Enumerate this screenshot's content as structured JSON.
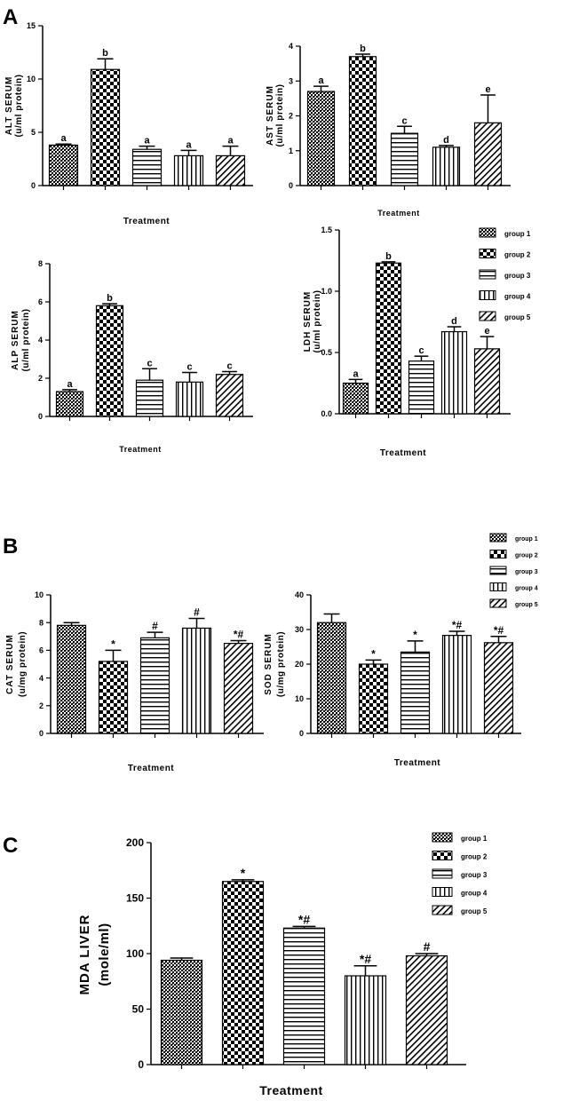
{
  "panel_labels": [
    "A",
    "B",
    "C"
  ],
  "legend_labels": [
    "group 1",
    "group 2",
    "group 3",
    "group 4",
    "group 5"
  ],
  "chart_data": [
    {
      "panel": "A",
      "type": "bar",
      "title": "",
      "categories": [
        "group 1",
        "group 2",
        "group 3",
        "group 4",
        "group 5"
      ],
      "values": [
        3.8,
        10.9,
        3.4,
        2.8,
        2.8
      ],
      "errors": [
        0.1,
        1.0,
        0.3,
        0.5,
        0.9
      ],
      "annotations": [
        "a",
        "b",
        "a",
        "a",
        "a"
      ],
      "ylabel": "ALT SERUM",
      "ylabel2": "(u/ml protein)",
      "xlabel": "Treatment",
      "ylim": [
        0,
        15
      ],
      "yticks": [
        0,
        5,
        10,
        15
      ],
      "ytick_labels": [
        "0",
        "5",
        "10",
        "15"
      ]
    },
    {
      "panel": "A",
      "type": "bar",
      "title": "",
      "categories": [
        "group 1",
        "group 2",
        "group 3",
        "group 4",
        "group 5"
      ],
      "values": [
        2.7,
        3.7,
        1.5,
        1.1,
        1.8
      ],
      "errors": [
        0.15,
        0.07,
        0.2,
        0.05,
        0.8
      ],
      "annotations": [
        "a",
        "b",
        "c",
        "d",
        "e"
      ],
      "ylabel": "AST SERUM",
      "ylabel2": "(u/ml protein)",
      "xlabel": "Treatment",
      "ylim": [
        0,
        4
      ],
      "yticks": [
        0,
        1,
        2,
        3,
        4
      ],
      "ytick_labels": [
        "0",
        "1",
        "2",
        "3",
        "4"
      ]
    },
    {
      "panel": "A",
      "type": "bar",
      "title": "",
      "categories": [
        "group 1",
        "group 2",
        "group 3",
        "group 4",
        "group 5"
      ],
      "values": [
        1.3,
        5.8,
        1.9,
        1.8,
        2.2
      ],
      "errors": [
        0.1,
        0.1,
        0.6,
        0.5,
        0.15
      ],
      "annotations": [
        "a",
        "b",
        "c",
        "c",
        "c"
      ],
      "ylabel": "ALP SERUM",
      "ylabel2": "(u/ml protein)",
      "xlabel": "Treatment",
      "ylim": [
        0,
        8
      ],
      "yticks": [
        0,
        2,
        4,
        6,
        8
      ],
      "ytick_labels": [
        "0",
        "2",
        "4",
        "6",
        "8"
      ]
    },
    {
      "panel": "A",
      "type": "bar",
      "title": "",
      "categories": [
        "group 1",
        "group 2",
        "group 3",
        "group 4",
        "group 5"
      ],
      "values": [
        0.25,
        1.23,
        0.43,
        0.67,
        0.53
      ],
      "errors": [
        0.03,
        0.01,
        0.04,
        0.04,
        0.1
      ],
      "annotations": [
        "a",
        "b",
        "c",
        "d",
        "e"
      ],
      "ylabel": "LDH SERUM",
      "ylabel2": "(u/ml protein)",
      "xlabel": "Treatment",
      "ylim": [
        0,
        1.5
      ],
      "yticks": [
        0,
        0.5,
        1.0,
        1.5
      ],
      "ytick_labels": [
        "0.0",
        "0.5",
        "1.0",
        "1.5"
      ]
    },
    {
      "panel": "B",
      "type": "bar",
      "title": "",
      "categories": [
        "group 1",
        "group 2",
        "group 3",
        "group 4",
        "group 5"
      ],
      "values": [
        7.8,
        5.2,
        6.9,
        7.6,
        6.5
      ],
      "errors": [
        0.2,
        0.8,
        0.4,
        0.7,
        0.2
      ],
      "annotations": [
        "",
        "*",
        "#",
        "#",
        "*#"
      ],
      "ylabel": "CAT SERUM",
      "ylabel2": "(u/mg protein)",
      "xlabel": "Treatment",
      "ylim": [
        0,
        10
      ],
      "yticks": [
        0,
        2,
        4,
        6,
        8,
        10
      ],
      "ytick_labels": [
        "0",
        "2",
        "4",
        "6",
        "8",
        "10"
      ]
    },
    {
      "panel": "B",
      "type": "bar",
      "title": "",
      "categories": [
        "group 1",
        "group 2",
        "group 3",
        "group 4",
        "group 5"
      ],
      "values": [
        32,
        20,
        23.5,
        28.3,
        26.2
      ],
      "errors": [
        2.5,
        1.2,
        3.2,
        1.2,
        1.8
      ],
      "annotations": [
        "",
        "*",
        "*",
        "*#",
        "*#"
      ],
      "ylabel": "SOD SERUM",
      "ylabel2": "(u/mg protein)",
      "xlabel": "Treatment",
      "ylim": [
        0,
        40
      ],
      "yticks": [
        0,
        10,
        20,
        30,
        40
      ],
      "ytick_labels": [
        "0",
        "10",
        "20",
        "30",
        "40"
      ]
    },
    {
      "panel": "C",
      "type": "bar",
      "title": "",
      "categories": [
        "group 1",
        "group 2",
        "group 3",
        "group 4",
        "group 5"
      ],
      "values": [
        94,
        165,
        123,
        80,
        98
      ],
      "errors": [
        2,
        1.5,
        1.5,
        9,
        2
      ],
      "annotations": [
        "",
        "*",
        "*#",
        "*#",
        "#"
      ],
      "ylabel": "MDA LIVER",
      "ylabel2": "(mole/ml)",
      "xlabel": "Treatment",
      "ylim": [
        0,
        200
      ],
      "yticks": [
        0,
        50,
        100,
        150,
        200
      ],
      "ytick_labels": [
        "0",
        "50",
        "100",
        "150",
        "200"
      ]
    }
  ]
}
